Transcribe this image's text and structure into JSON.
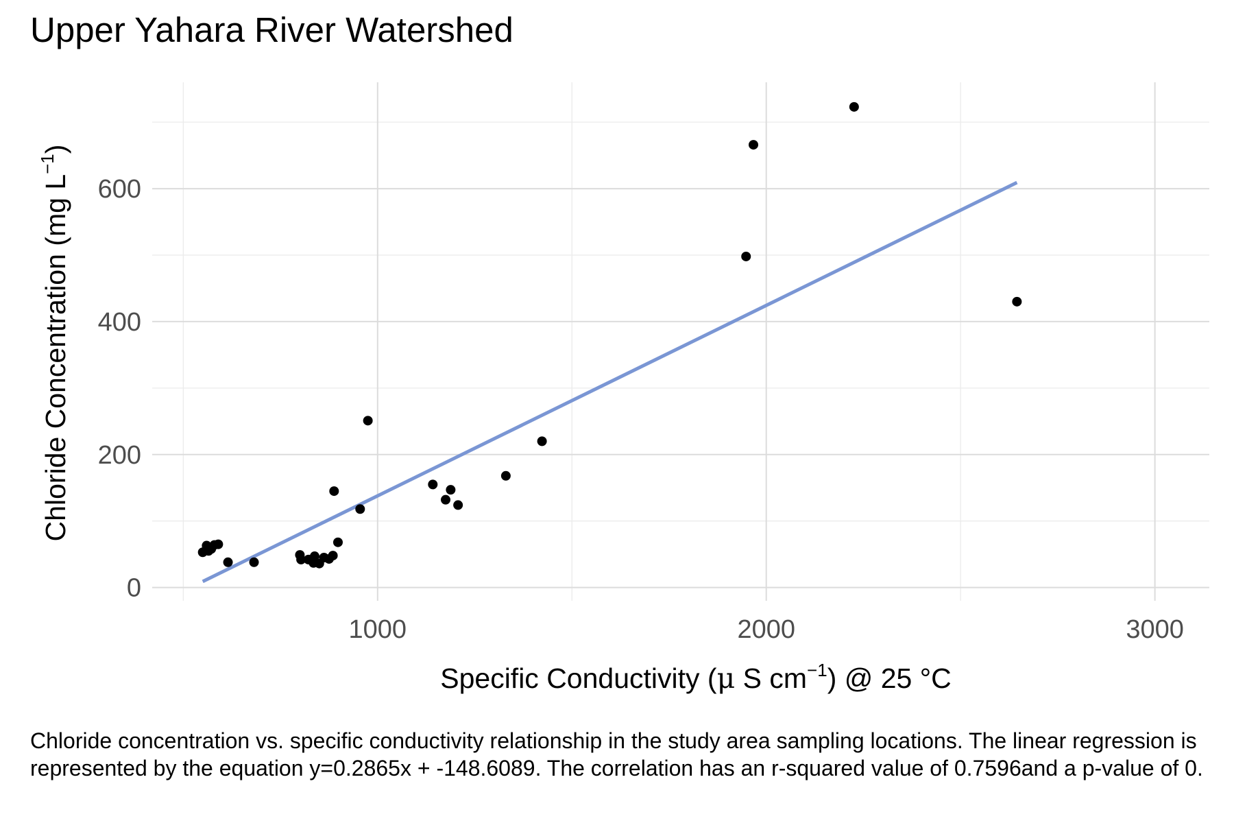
{
  "chart_data": {
    "type": "scatter",
    "title": "Upper Yahara River Watershed",
    "xlabel": {
      "text": "Specific Conductivity (",
      "mu": "μ",
      "unit_main": " S cm",
      "unit_sup": "−1",
      "close": ")",
      "tail": " @ 25 °C"
    },
    "ylabel": {
      "text": "Chloride Concentration (",
      "unit_main": "mg L",
      "unit_sup": "−1",
      "close": ")"
    },
    "xlim": [
      420,
      3140
    ],
    "ylim": [
      -20,
      760
    ],
    "x_ticks": [
      1000,
      2000,
      3000
    ],
    "x_tick_labels": [
      "1000",
      "2000",
      "3000"
    ],
    "y_ticks": [
      0,
      200,
      400,
      600
    ],
    "y_tick_labels": [
      "0",
      "200",
      "400",
      "600"
    ],
    "grid": true,
    "legend": "none",
    "marker_color": "#000000",
    "line_color": "#7a96d4",
    "points": [
      {
        "x": 550,
        "y": 53
      },
      {
        "x": 560,
        "y": 63
      },
      {
        "x": 565,
        "y": 55
      },
      {
        "x": 572,
        "y": 58
      },
      {
        "x": 580,
        "y": 64
      },
      {
        "x": 590,
        "y": 65
      },
      {
        "x": 615,
        "y": 38
      },
      {
        "x": 682,
        "y": 38
      },
      {
        "x": 800,
        "y": 49
      },
      {
        "x": 803,
        "y": 42
      },
      {
        "x": 822,
        "y": 42
      },
      {
        "x": 835,
        "y": 37
      },
      {
        "x": 838,
        "y": 47
      },
      {
        "x": 850,
        "y": 36
      },
      {
        "x": 862,
        "y": 45
      },
      {
        "x": 875,
        "y": 43
      },
      {
        "x": 885,
        "y": 48
      },
      {
        "x": 888,
        "y": 145
      },
      {
        "x": 898,
        "y": 68
      },
      {
        "x": 955,
        "y": 118
      },
      {
        "x": 975,
        "y": 251
      },
      {
        "x": 1142,
        "y": 155
      },
      {
        "x": 1175,
        "y": 132
      },
      {
        "x": 1188,
        "y": 147
      },
      {
        "x": 1207,
        "y": 124
      },
      {
        "x": 1330,
        "y": 168
      },
      {
        "x": 1423,
        "y": 220
      },
      {
        "x": 1948,
        "y": 498
      },
      {
        "x": 1967,
        "y": 666
      },
      {
        "x": 2226,
        "y": 723
      },
      {
        "x": 2645,
        "y": 430
      }
    ],
    "regression": {
      "slope": 0.2865,
      "intercept": -148.6089,
      "x_start": 550,
      "x_end": 2645
    }
  },
  "caption": "Chloride concentration vs. specific conductivity relationship in the study area sampling locations. The linear regression is represented by the equation y=0.2865x + -148.6089. The correlation has an r-squared value of 0.7596and a p-value of 0."
}
